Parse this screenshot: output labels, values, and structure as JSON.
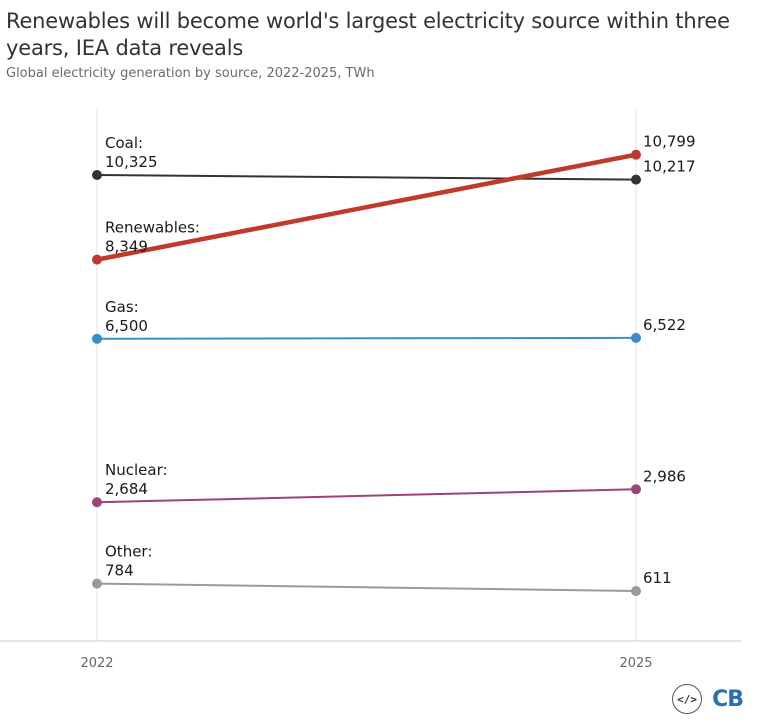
{
  "header": {
    "title": "Renewables will become world's largest electricity source within three years, IEA data reveals",
    "subtitle": "Global electricity generation by source, 2022-2025, TWh"
  },
  "branding": {
    "embed_icon": "code-embed-icon",
    "logo_text": "CB"
  },
  "chart_data": {
    "type": "line",
    "title": "Renewables will become world's largest electricity source within three years, IEA data reveals",
    "subtitle": "Global electricity generation by source, 2022-2025, TWh",
    "categories": [
      "2022",
      "2025"
    ],
    "ylim": [
      500,
      10800
    ],
    "grid": false,
    "series": [
      {
        "name": "Coal:",
        "values": [
          10325,
          10217
        ],
        "labels": [
          "10,325",
          "10,217"
        ],
        "color": "#333333"
      },
      {
        "name": "Renewables:",
        "values": [
          8349,
          10799
        ],
        "labels": [
          "8,349",
          "10,799"
        ],
        "color": "#c0392b"
      },
      {
        "name": "Gas:",
        "values": [
          6500,
          6522
        ],
        "labels": [
          "6,500",
          "6,522"
        ],
        "color": "#3a8ec8"
      },
      {
        "name": "Nuclear:",
        "values": [
          2684,
          2986
        ],
        "labels": [
          "2,684",
          "2,986"
        ],
        "color": "#9b4477"
      },
      {
        "name": "Other:",
        "values": [
          784,
          611
        ],
        "labels": [
          "784",
          "611"
        ],
        "color": "#9a9a9a"
      }
    ]
  }
}
